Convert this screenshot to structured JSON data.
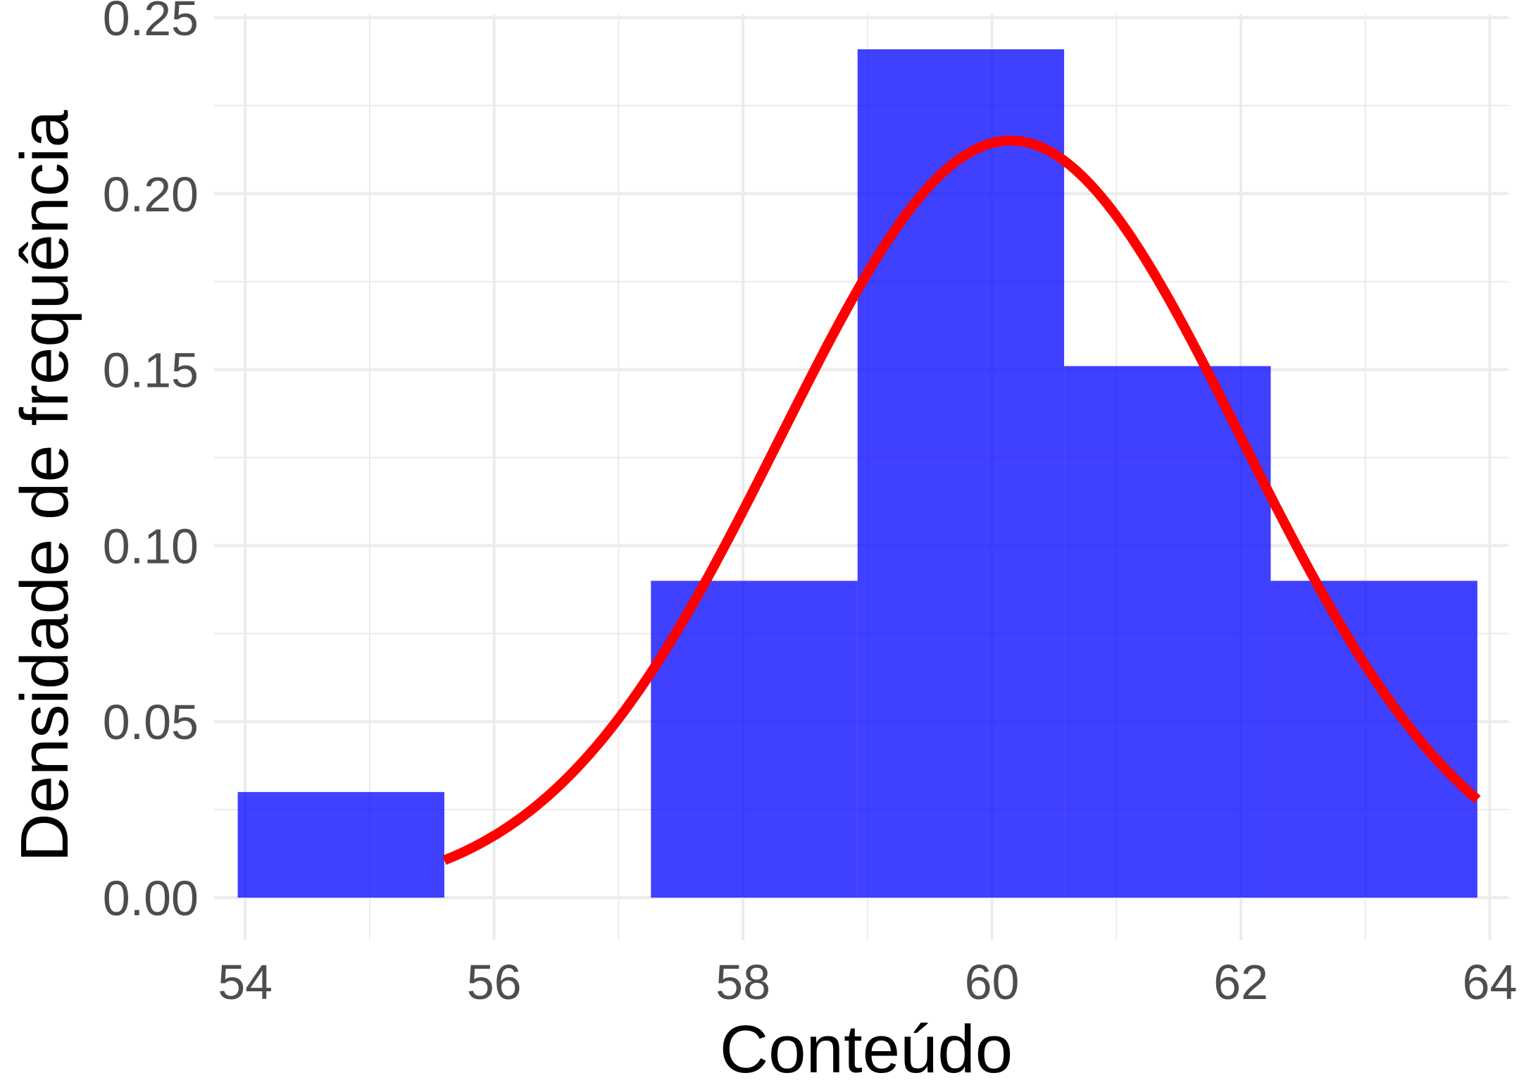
{
  "chart_data": {
    "type": "bar",
    "title": "",
    "xlabel": "Conteúdo",
    "ylabel": "Densidade de frequência",
    "xlim": [
      53.75,
      64.15
    ],
    "ylim": [
      -0.012,
      0.251
    ],
    "grid": true,
    "legend": "none",
    "x_ticks": [
      54,
      56,
      58,
      60,
      62,
      64
    ],
    "x_minor": [
      55,
      57,
      59,
      61,
      63
    ],
    "y_ticks": [
      0.0,
      0.05,
      0.1,
      0.15,
      0.2,
      0.25
    ],
    "y_tick_labels": [
      "0.00",
      "0.05",
      "0.10",
      "0.15",
      "0.20",
      "0.25"
    ],
    "y_minor": [
      0.025,
      0.075,
      0.125,
      0.175,
      0.225
    ],
    "bins": [
      {
        "x0": 53.94,
        "x1": 55.6,
        "density": 0.03
      },
      {
        "x0": 55.6,
        "x1": 57.26,
        "density": 0.0
      },
      {
        "x0": 57.26,
        "x1": 58.92,
        "density": 0.09
      },
      {
        "x0": 58.92,
        "x1": 60.58,
        "density": 0.241
      },
      {
        "x0": 60.58,
        "x1": 62.24,
        "density": 0.151
      },
      {
        "x0": 62.24,
        "x1": 63.9,
        "density": 0.09
      }
    ],
    "bar_color": "#0000ff",
    "bar_opacity": 0.75,
    "density_curve": {
      "type": "normal",
      "mean": 60.15,
      "sd": 1.855,
      "x_range": [
        55.6,
        63.9
      ],
      "color": "#ff0000"
    }
  }
}
